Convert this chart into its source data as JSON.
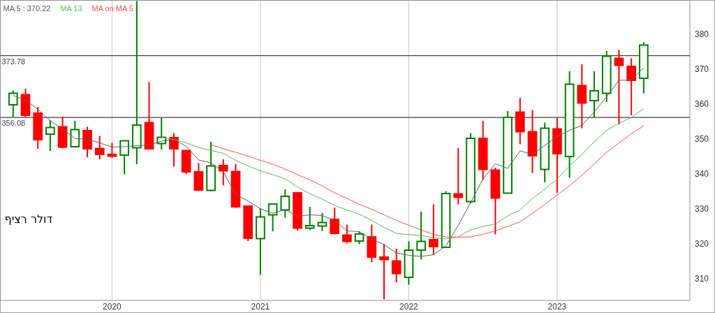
{
  "chart_data": {
    "type": "candlestick",
    "x": [
      "2019-05",
      "2019-06",
      "2019-07",
      "2019-08",
      "2019-09",
      "2019-10",
      "2019-11",
      "2019-12",
      "2020-01",
      "2020-02",
      "2020-03",
      "2020-04",
      "2020-05",
      "2020-06",
      "2020-07",
      "2020-08",
      "2020-09",
      "2020-10",
      "2020-11",
      "2020-12",
      "2021-01",
      "2021-02",
      "2021-03",
      "2021-04",
      "2021-05",
      "2021-06",
      "2021-07",
      "2021-08",
      "2021-09",
      "2021-10",
      "2021-11",
      "2021-12",
      "2022-01",
      "2022-02",
      "2022-03",
      "2022-04",
      "2022-05",
      "2022-06",
      "2022-07",
      "2022-08",
      "2022-09",
      "2022-10",
      "2022-11",
      "2022-12",
      "2023-01",
      "2023-02",
      "2023-03",
      "2023-04",
      "2023-05",
      "2023-06",
      "2023-07",
      "2023-08"
    ],
    "ohlc": [
      [
        359.7,
        363.8,
        356.2,
        363.0
      ],
      [
        362.6,
        364.3,
        356.2,
        356.7
      ],
      [
        357.3,
        359.1,
        347.1,
        349.7
      ],
      [
        351.3,
        355.4,
        346.5,
        353.2
      ],
      [
        353.4,
        356.3,
        347.2,
        347.6
      ],
      [
        347.7,
        355.1,
        347.7,
        352.6
      ],
      [
        352.3,
        353.4,
        344.7,
        347.1
      ],
      [
        347.2,
        350.8,
        344.1,
        345.5
      ],
      [
        345.5,
        348.8,
        344.5,
        345.0
      ],
      [
        345.3,
        349.4,
        339.8,
        349.4
      ],
      [
        347.4,
        389.4,
        342.7,
        353.9
      ],
      [
        354.6,
        366.2,
        347.1,
        347.1
      ],
      [
        348.6,
        355.9,
        346.9,
        350.4
      ],
      [
        350.3,
        351.6,
        342.0,
        347.1
      ],
      [
        346.6,
        346.6,
        339.9,
        340.5
      ],
      [
        340.5,
        343.0,
        335.0,
        335.3
      ],
      [
        335.2,
        349.1,
        334.9,
        342.2
      ],
      [
        342.3,
        344.1,
        336.7,
        340.8
      ],
      [
        340.6,
        342.7,
        330.2,
        330.5
      ],
      [
        330.7,
        330.9,
        320.7,
        321.5
      ],
      [
        321.4,
        330.1,
        311.0,
        327.6
      ],
      [
        328.2,
        331.5,
        323.5,
        331.3
      ],
      [
        329.6,
        335.5,
        327.4,
        333.5
      ],
      [
        334.5,
        334.7,
        323.7,
        324.4
      ],
      [
        324.4,
        330.5,
        323.9,
        325.1
      ],
      [
        325.0,
        328.7,
        323.6,
        326.0
      ],
      [
        326.9,
        330.3,
        322.6,
        322.9
      ],
      [
        322.4,
        325.4,
        320.0,
        320.6
      ],
      [
        320.7,
        323.4,
        319.8,
        322.7
      ],
      [
        321.9,
        325.4,
        314.6,
        316.1
      ],
      [
        316.1,
        319.8,
        304.0,
        315.4
      ],
      [
        315.0,
        318.5,
        308.9,
        311.4
      ],
      [
        310.3,
        320.6,
        308.2,
        318.1
      ],
      [
        318.1,
        329.1,
        315.4,
        320.6
      ],
      [
        321.1,
        331.2,
        316.8,
        319.1
      ],
      [
        318.9,
        335.0,
        318.9,
        334.3
      ],
      [
        334.2,
        347.3,
        331.2,
        333.2
      ],
      [
        332.0,
        351.6,
        331.5,
        350.1
      ],
      [
        350.1,
        355.1,
        338.2,
        341.2
      ],
      [
        341.0,
        341.7,
        322.6,
        333.0
      ],
      [
        334.4,
        357.9,
        334.4,
        356.1
      ],
      [
        357.6,
        361.7,
        348.4,
        352.0
      ],
      [
        352.0,
        358.2,
        340.2,
        345.1
      ],
      [
        341.2,
        354.6,
        337.5,
        353.0
      ],
      [
        352.8,
        355.9,
        334.5,
        345.7
      ],
      [
        344.9,
        369.3,
        338.8,
        365.6
      ],
      [
        365.2,
        371.3,
        353.0,
        360.2
      ],
      [
        360.9,
        369.3,
        356.1,
        363.7
      ],
      [
        363.0,
        375.1,
        360.5,
        373.6
      ],
      [
        373.0,
        375.4,
        354.1,
        371.0
      ],
      [
        370.7,
        373.0,
        356.7,
        366.7
      ],
      [
        367.3,
        377.6,
        363.0,
        376.8
      ]
    ],
    "colors": [
      "#008000",
      "#ff0000",
      "#ff0000",
      "#008000",
      "#ff0000",
      "#008000",
      "#ff0000",
      "#ff0000",
      "#ff0000",
      "#008000",
      "#008000",
      "#ff0000",
      "#008000",
      "#ff0000",
      "#ff0000",
      "#ff0000",
      "#008000",
      "#ff0000",
      "#ff0000",
      "#ff0000",
      "#008000",
      "#008000",
      "#008000",
      "#ff0000",
      "#008000",
      "#008000",
      "#ff0000",
      "#ff0000",
      "#008000",
      "#ff0000",
      "#ff0000",
      "#ff0000",
      "#008000",
      "#008000",
      "#ff0000",
      "#008000",
      "#ff0000",
      "#008000",
      "#ff0000",
      "#ff0000",
      "#008000",
      "#ff0000",
      "#ff0000",
      "#008000",
      "#ff0000",
      "#008000",
      "#ff0000",
      "#008000",
      "#008000",
      "#ff0000",
      "#ff0000",
      "#008000"
    ],
    "series": [
      {
        "name": "MA 5 : 370.22",
        "type": "line",
        "color": "#606060",
        "values": [
          362.4,
          361.0,
          358.4,
          355.1,
          352.8,
          350.1,
          349.8,
          348.8,
          347.6,
          347.7,
          348.0,
          348.2,
          349.3,
          349.8,
          347.8,
          343.9,
          343.1,
          340.5,
          334.0,
          332.2,
          329.9,
          328.7,
          329.7,
          327.8,
          328.2,
          328.0,
          326.6,
          323.6,
          323.4,
          321.3,
          319.7,
          317.3,
          316.6,
          316.3,
          316.8,
          319.3,
          325.2,
          331.7,
          338.5,
          342.8,
          341.5,
          346.5,
          345.5,
          348.1,
          350.6,
          352.4,
          353.8,
          357.7,
          362.0,
          366.7,
          366.8,
          370.3
        ]
      },
      {
        "name": "MA 13",
        "type": "line",
        "color": "#5cb85c",
        "values": [
          null,
          null,
          null,
          null,
          null,
          null,
          null,
          null,
          null,
          null,
          null,
          null,
          350.4,
          349.8,
          348.8,
          347.5,
          346.6,
          345.8,
          343.8,
          342.2,
          340.8,
          339.7,
          338.5,
          336.2,
          334.2,
          332.7,
          330.9,
          329.6,
          328.4,
          326.6,
          324.6,
          322.9,
          322.5,
          322.3,
          321.6,
          321.3,
          321.9,
          323.9,
          324.9,
          325.6,
          327.9,
          329.6,
          332.9,
          335.5,
          338.5,
          342.2,
          345.5,
          349.1,
          352.4,
          354.4,
          356.1,
          358.6
        ]
      },
      {
        "name": "MA on MA 5",
        "type": "line",
        "color": "#ff5050",
        "values": [
          null,
          null,
          null,
          null,
          null,
          null,
          null,
          null,
          null,
          null,
          null,
          null,
          null,
          null,
          null,
          null,
          348.3,
          347.1,
          346.1,
          345.0,
          343.8,
          342.7,
          341.3,
          339.7,
          338.2,
          336.5,
          334.5,
          332.9,
          331.2,
          329.8,
          328.2,
          326.6,
          325.2,
          323.9,
          322.6,
          321.9,
          321.8,
          321.9,
          322.6,
          323.6,
          324.9,
          326.2,
          328.6,
          331.2,
          333.9,
          336.5,
          339.5,
          342.8,
          346.1,
          348.8,
          351.4,
          353.7
        ]
      }
    ],
    "xlim": [
      "2019-03-31",
      "2023-11-23"
    ],
    "xticks": [
      "2020",
      "2021",
      "2022",
      "2023"
    ],
    "ylim": [
      303.7,
      389.6
    ],
    "yticks": [
      310,
      320,
      330,
      340,
      350,
      360,
      370,
      380
    ],
    "ref_lines": [
      {
        "axis": "y",
        "value": 373.78,
        "label": "373.78",
        "color": "#404040"
      },
      {
        "axis": "y",
        "value": 356.08,
        "label": "356.08",
        "color": "#404040"
      }
    ],
    "annotations": [
      "דולר רציף"
    ],
    "grid": "x",
    "legend": "top left"
  }
}
